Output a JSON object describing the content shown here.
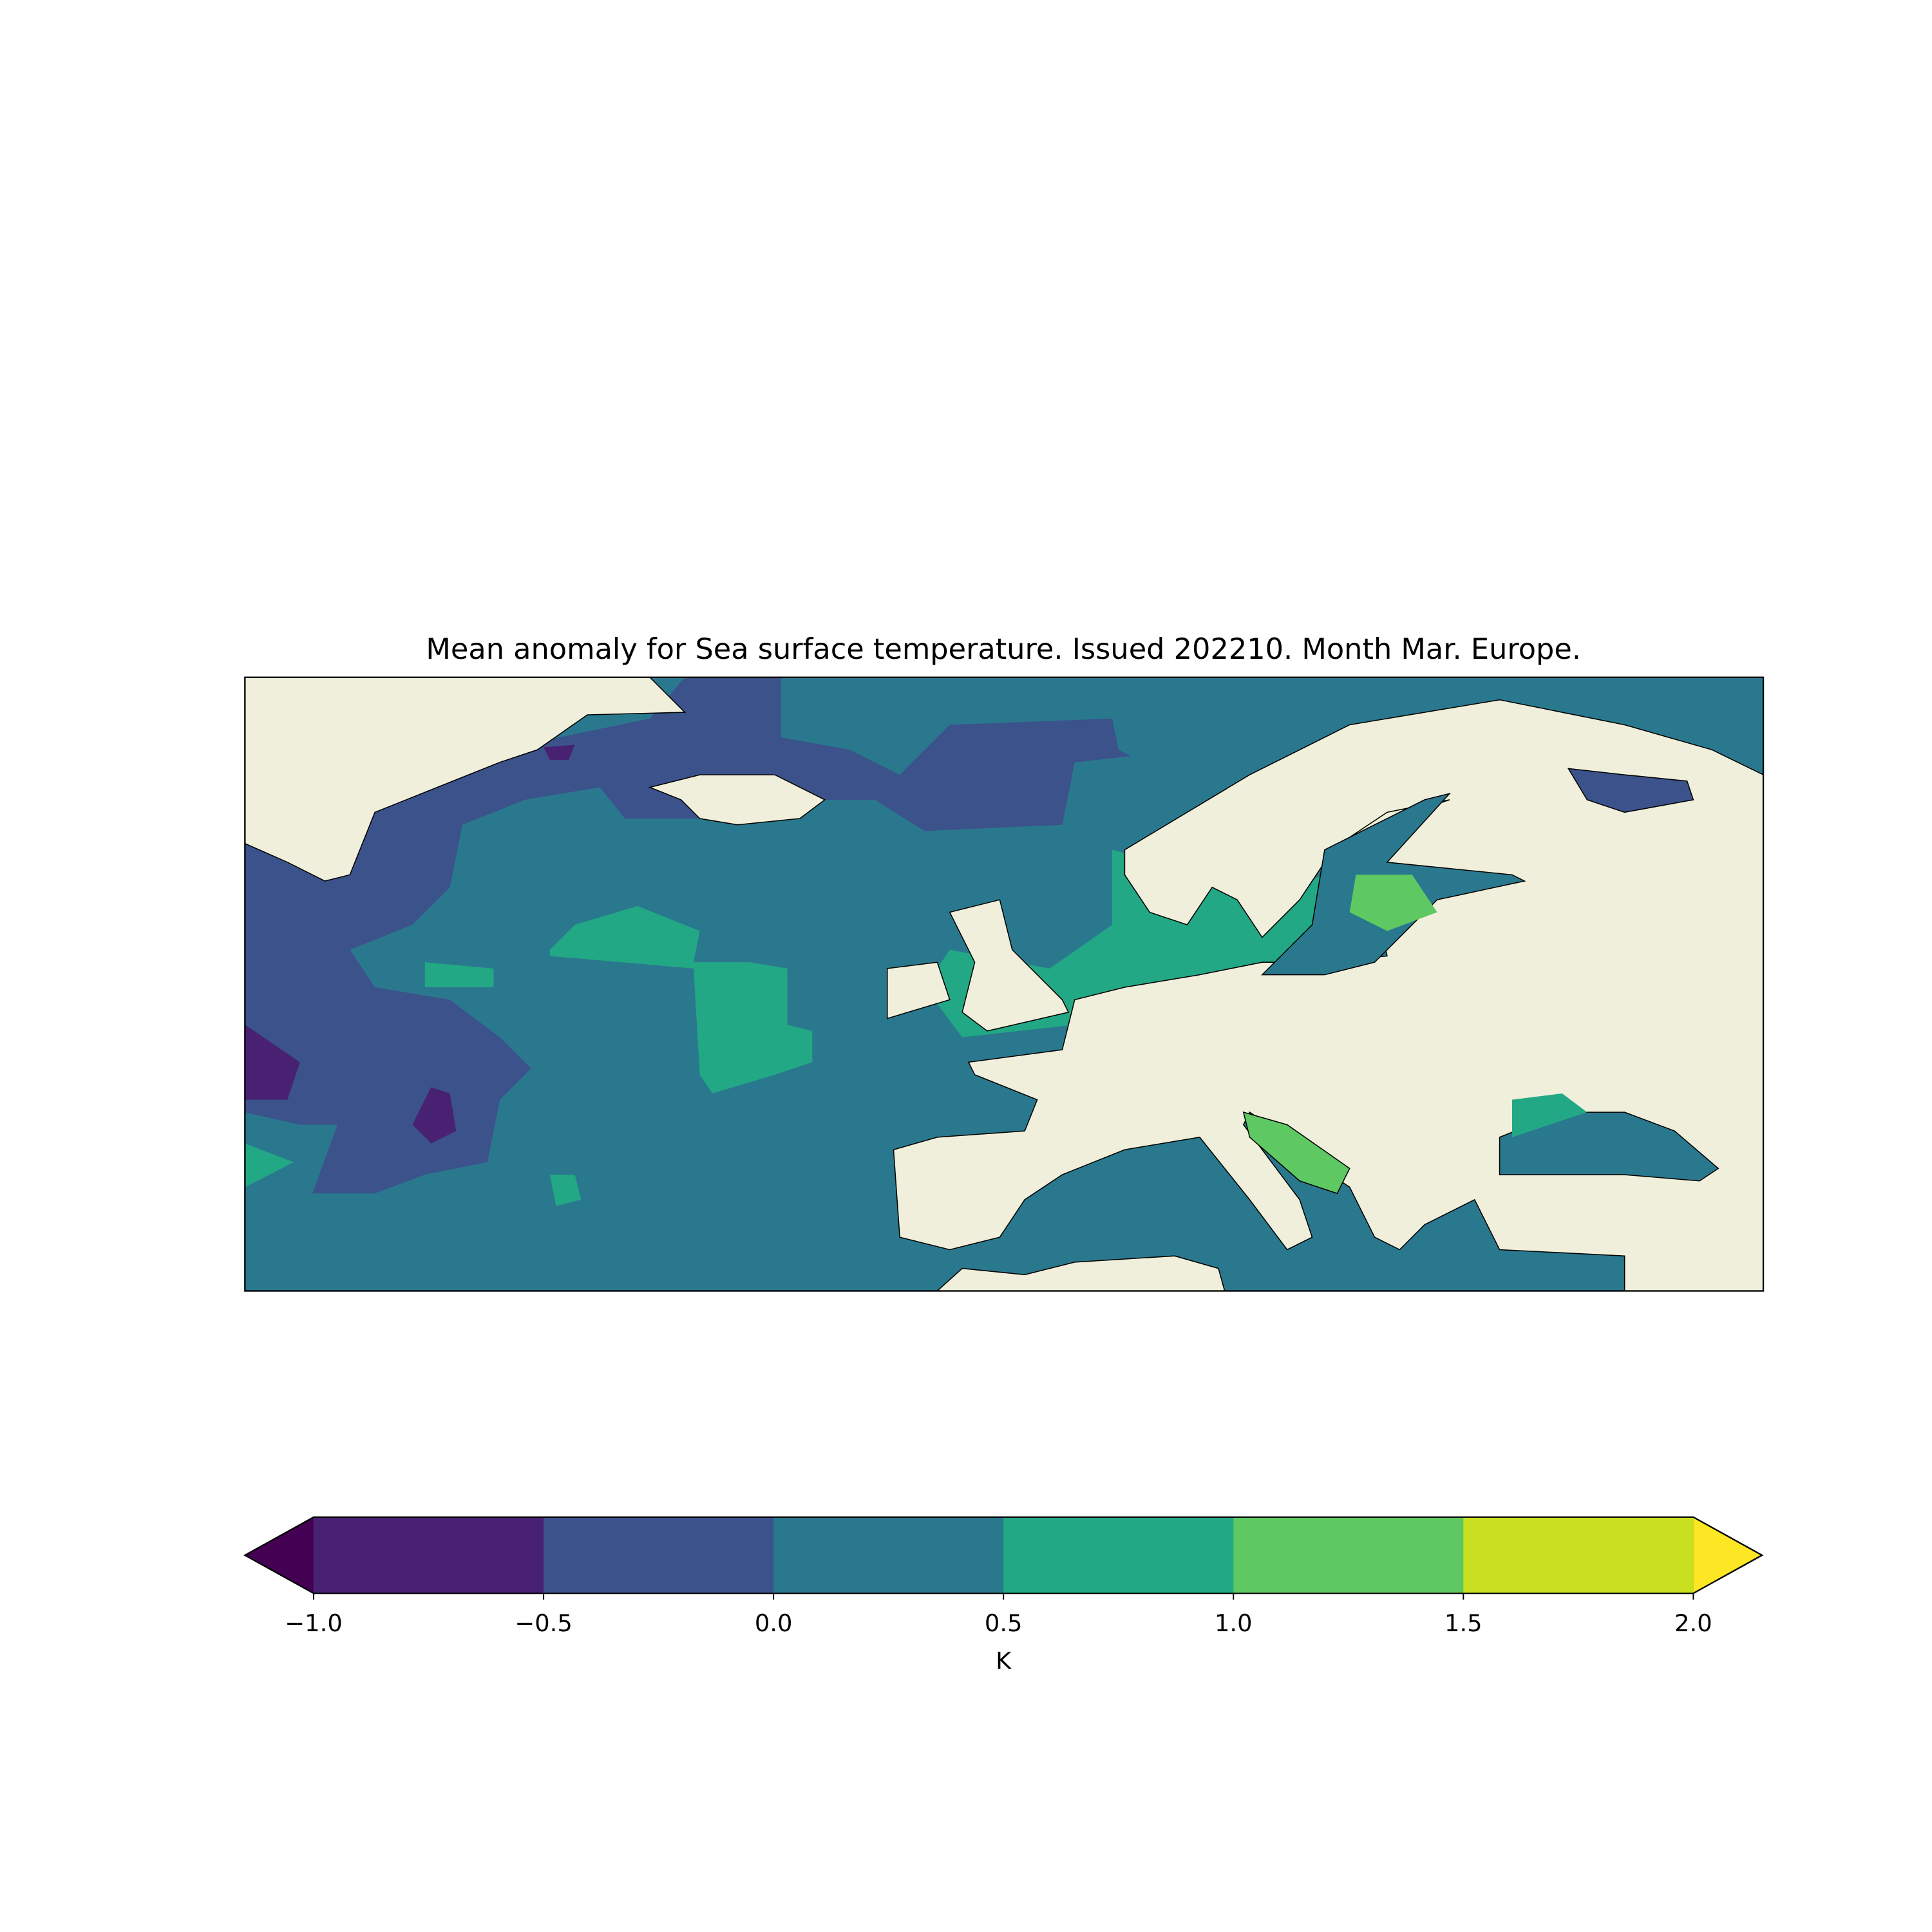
{
  "chart_data": {
    "type": "contour-map",
    "title": "Mean anomaly for Sea surface temperature. Issued 202210. Month Mar. Europe.",
    "colorbar": {
      "label": "K",
      "ticks": [
        {
          "value": -1,
          "label": "−1.0"
        },
        {
          "value": -0.5,
          "label": "−0.5"
        },
        {
          "value": 0,
          "label": "0.0"
        },
        {
          "value": 0.5,
          "label": "0.5"
        },
        {
          "value": 1,
          "label": "1.0"
        },
        {
          "value": 1.5,
          "label": "1.5"
        },
        {
          "value": 2,
          "label": "2.0"
        }
      ],
      "colors": [
        "#482173",
        "#3b528b",
        "#2a788e",
        "#22a884",
        "#5ec962",
        "#c8e020"
      ],
      "under_color": "#440154",
      "over_color": "#fde725"
    }
  }
}
